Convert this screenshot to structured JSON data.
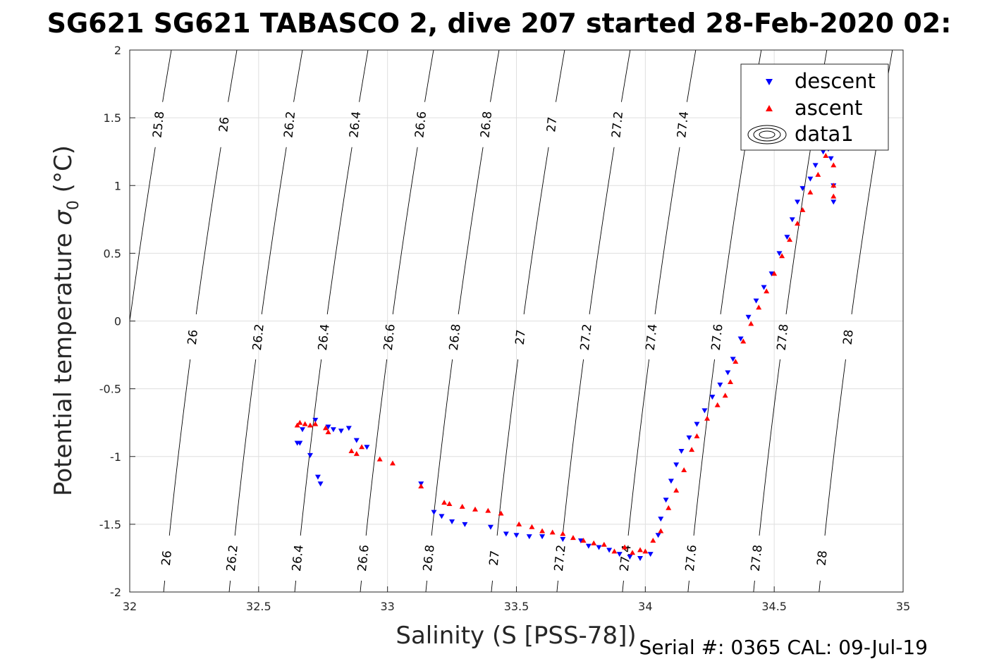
{
  "title": "SG621 SG621 TABASCO 2, dive 207 started 28-Feb-2020 02:",
  "serial_text": "Serial #: 0365  CAL: 09-Jul-19",
  "chart_data": {
    "type": "scatter",
    "title": "SG621 SG621 TABASCO 2, dive 207 started 28-Feb-2020 02:",
    "xlabel": "Salinity (S [PSS-78])",
    "ylabel_main": "Potential temperature ",
    "ylabel_symbol": "σ",
    "ylabel_sub": "0",
    "ylabel_tail": " (°C)",
    "xlim": [
      32,
      35
    ],
    "ylim": [
      -2,
      2
    ],
    "xticks": [
      32,
      32.5,
      33,
      33.5,
      34,
      34.5,
      35
    ],
    "yticks": [
      -2,
      -1.5,
      -1,
      -0.5,
      0,
      0.5,
      1,
      1.5,
      2
    ],
    "xtick_labels": [
      "32",
      "32.5",
      "33",
      "33.5",
      "34",
      "34.5",
      "35"
    ],
    "ytick_labels": [
      "-2",
      "-1.5",
      "-1",
      "-0.5",
      "0",
      "0.5",
      "1",
      "1.5",
      "2"
    ],
    "grid": true,
    "legend_position": "top-right",
    "legend": [
      "descent",
      "ascent",
      "data1"
    ],
    "colors": {
      "descent": "#0000ff",
      "ascent": "#ff0000",
      "contour": "#000000"
    },
    "isopycnals": [
      25.8,
      26,
      26.2,
      26.4,
      26.6,
      26.8,
      27,
      27.2,
      27.4,
      27.6,
      27.8,
      28
    ],
    "isopycnal_labels": [
      "25.8",
      "26",
      "26.2",
      "26.4",
      "26.6",
      "26.8",
      "27",
      "27.2",
      "27.4",
      "27.6",
      "27.8",
      "28"
    ],
    "series": [
      {
        "name": "descent",
        "marker": "triangle-down",
        "points": [
          [
            32.65,
            -0.9
          ],
          [
            32.66,
            -0.9
          ],
          [
            32.67,
            -0.8
          ],
          [
            32.7,
            -0.99
          ],
          [
            32.72,
            -0.73
          ],
          [
            32.73,
            -1.15
          ],
          [
            32.74,
            -1.2
          ],
          [
            32.77,
            -0.78
          ],
          [
            32.79,
            -0.8
          ],
          [
            32.82,
            -0.81
          ],
          [
            32.85,
            -0.79
          ],
          [
            32.88,
            -0.88
          ],
          [
            32.92,
            -0.93
          ],
          [
            33.13,
            -1.2
          ],
          [
            33.18,
            -1.41
          ],
          [
            33.21,
            -1.44
          ],
          [
            33.25,
            -1.48
          ],
          [
            33.3,
            -1.5
          ],
          [
            33.4,
            -1.52
          ],
          [
            33.46,
            -1.57
          ],
          [
            33.5,
            -1.58
          ],
          [
            33.55,
            -1.59
          ],
          [
            33.6,
            -1.59
          ],
          [
            33.68,
            -1.61
          ],
          [
            33.75,
            -1.62
          ],
          [
            33.78,
            -1.66
          ],
          [
            33.82,
            -1.67
          ],
          [
            33.86,
            -1.69
          ],
          [
            33.9,
            -1.72
          ],
          [
            33.94,
            -1.74
          ],
          [
            33.98,
            -1.75
          ],
          [
            34.02,
            -1.72
          ],
          [
            34.05,
            -1.58
          ],
          [
            34.06,
            -1.46
          ],
          [
            34.08,
            -1.32
          ],
          [
            34.1,
            -1.18
          ],
          [
            34.12,
            -1.06
          ],
          [
            34.14,
            -0.96
          ],
          [
            34.17,
            -0.86
          ],
          [
            34.2,
            -0.76
          ],
          [
            34.23,
            -0.66
          ],
          [
            34.26,
            -0.56
          ],
          [
            34.29,
            -0.47
          ],
          [
            34.32,
            -0.38
          ],
          [
            34.34,
            -0.28
          ],
          [
            34.37,
            -0.13
          ],
          [
            34.4,
            0.03
          ],
          [
            34.43,
            0.15
          ],
          [
            34.46,
            0.25
          ],
          [
            34.49,
            0.35
          ],
          [
            34.52,
            0.5
          ],
          [
            34.55,
            0.62
          ],
          [
            34.57,
            0.75
          ],
          [
            34.59,
            0.88
          ],
          [
            34.61,
            0.98
          ],
          [
            34.64,
            1.05
          ],
          [
            34.66,
            1.15
          ],
          [
            34.69,
            1.25
          ],
          [
            34.71,
            1.27
          ],
          [
            34.72,
            1.2
          ],
          [
            34.73,
            1.0
          ],
          [
            34.73,
            0.88
          ]
        ]
      },
      {
        "name": "ascent",
        "marker": "triangle-up",
        "points": [
          [
            32.65,
            -0.77
          ],
          [
            32.66,
            -0.75
          ],
          [
            32.68,
            -0.76
          ],
          [
            32.7,
            -0.77
          ],
          [
            32.72,
            -0.76
          ],
          [
            32.76,
            -0.79
          ],
          [
            32.77,
            -0.82
          ],
          [
            32.86,
            -0.96
          ],
          [
            32.88,
            -0.98
          ],
          [
            32.9,
            -0.93
          ],
          [
            32.97,
            -1.02
          ],
          [
            33.02,
            -1.05
          ],
          [
            33.13,
            -1.22
          ],
          [
            33.22,
            -1.34
          ],
          [
            33.24,
            -1.35
          ],
          [
            33.29,
            -1.37
          ],
          [
            33.34,
            -1.39
          ],
          [
            33.39,
            -1.4
          ],
          [
            33.44,
            -1.42
          ],
          [
            33.51,
            -1.5
          ],
          [
            33.56,
            -1.52
          ],
          [
            33.6,
            -1.55
          ],
          [
            33.64,
            -1.56
          ],
          [
            33.68,
            -1.57
          ],
          [
            33.72,
            -1.6
          ],
          [
            33.76,
            -1.62
          ],
          [
            33.8,
            -1.64
          ],
          [
            33.84,
            -1.65
          ],
          [
            33.88,
            -1.7
          ],
          [
            33.92,
            -1.67
          ],
          [
            33.95,
            -1.71
          ],
          [
            33.98,
            -1.69
          ],
          [
            34.0,
            -1.7
          ],
          [
            34.03,
            -1.62
          ],
          [
            34.06,
            -1.55
          ],
          [
            34.09,
            -1.38
          ],
          [
            34.12,
            -1.25
          ],
          [
            34.15,
            -1.1
          ],
          [
            34.18,
            -0.95
          ],
          [
            34.2,
            -0.85
          ],
          [
            34.24,
            -0.72
          ],
          [
            34.28,
            -0.62
          ],
          [
            34.31,
            -0.55
          ],
          [
            34.33,
            -0.45
          ],
          [
            34.35,
            -0.3
          ],
          [
            34.38,
            -0.15
          ],
          [
            34.41,
            -0.02
          ],
          [
            34.44,
            0.1
          ],
          [
            34.47,
            0.22
          ],
          [
            34.5,
            0.35
          ],
          [
            34.53,
            0.48
          ],
          [
            34.56,
            0.6
          ],
          [
            34.59,
            0.72
          ],
          [
            34.61,
            0.82
          ],
          [
            34.64,
            0.95
          ],
          [
            34.67,
            1.08
          ],
          [
            34.7,
            1.22
          ],
          [
            34.72,
            1.3
          ],
          [
            34.73,
            1.15
          ],
          [
            34.73,
            1.0
          ],
          [
            34.73,
            0.92
          ]
        ]
      }
    ]
  }
}
